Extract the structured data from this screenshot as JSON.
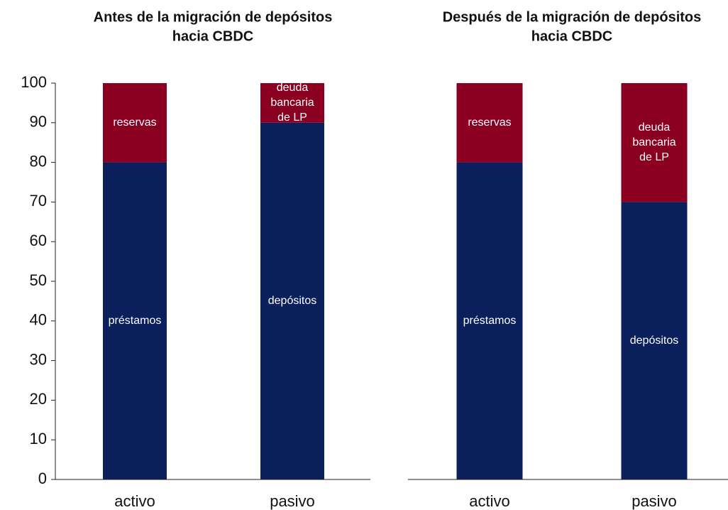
{
  "chart_data": [
    {
      "type": "stacked_bar",
      "title": [
        "Antes de la migración de depósitos",
        "hacia CBDC"
      ],
      "categories": [
        "activo",
        "pasivo"
      ],
      "stacks": [
        [
          {
            "label": [
              "préstamos"
            ],
            "value": 80,
            "color": "#0a1f5c"
          },
          {
            "label": [
              "reservas"
            ],
            "value": 20,
            "color": "#8b0020"
          }
        ],
        [
          {
            "label": [
              "depósitos"
            ],
            "value": 90,
            "color": "#0a1f5c"
          },
          {
            "label": [
              "deuda",
              "bancaria",
              "de LP"
            ],
            "value": 10,
            "color": "#8b0020"
          }
        ]
      ],
      "ylim": [
        0,
        100
      ],
      "yticks": [
        0,
        10,
        20,
        30,
        40,
        50,
        60,
        70,
        80,
        90,
        100
      ]
    },
    {
      "type": "stacked_bar",
      "title": [
        "Después de la migración de depósitos",
        "hacia CBDC"
      ],
      "categories": [
        "activo",
        "pasivo"
      ],
      "stacks": [
        [
          {
            "label": [
              "préstamos"
            ],
            "value": 80,
            "color": "#0a1f5c"
          },
          {
            "label": [
              "reservas"
            ],
            "value": 20,
            "color": "#8b0020"
          }
        ],
        [
          {
            "label": [
              "depósitos"
            ],
            "value": 70,
            "color": "#0a1f5c"
          },
          {
            "label": [
              "deuda",
              "bancaria",
              "de LP"
            ],
            "value": 30,
            "color": "#8b0020"
          }
        ]
      ],
      "ylim": [
        0,
        100
      ]
    }
  ]
}
